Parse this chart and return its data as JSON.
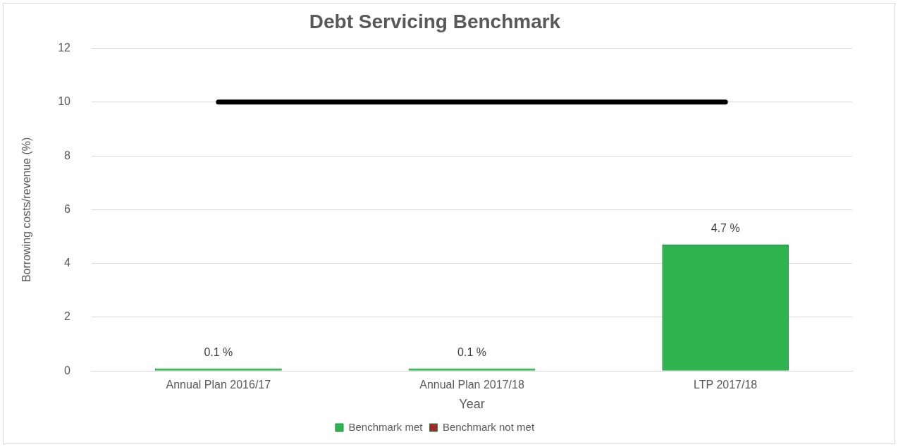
{
  "chart_data": {
    "type": "bar",
    "title": "Debt Servicing Benchmark",
    "xlabel": "Year",
    "ylabel": "Borrowing costs/revenue (%)",
    "categories": [
      "Annual Plan 2016/17",
      "Annual Plan 2017/18",
      "LTP 2017/18"
    ],
    "series": [
      {
        "name": "Benchmark met",
        "color": "#2fb34f",
        "values": [
          0.1,
          0.1,
          4.7
        ],
        "value_labels": [
          "0.1 %",
          "0.1 %",
          "4.7 %"
        ]
      },
      {
        "name": "Benchmark not met",
        "color": "#a3282a",
        "values": [
          null,
          null,
          null
        ]
      },
      {
        "type": "line",
        "color": "#000000",
        "values": [
          10,
          10,
          10
        ],
        "marker": "none"
      }
    ],
    "ylim": [
      0,
      12
    ],
    "yticks": [
      0,
      2,
      4,
      6,
      8,
      10,
      12
    ],
    "grid": "y",
    "legend": "bottom"
  }
}
